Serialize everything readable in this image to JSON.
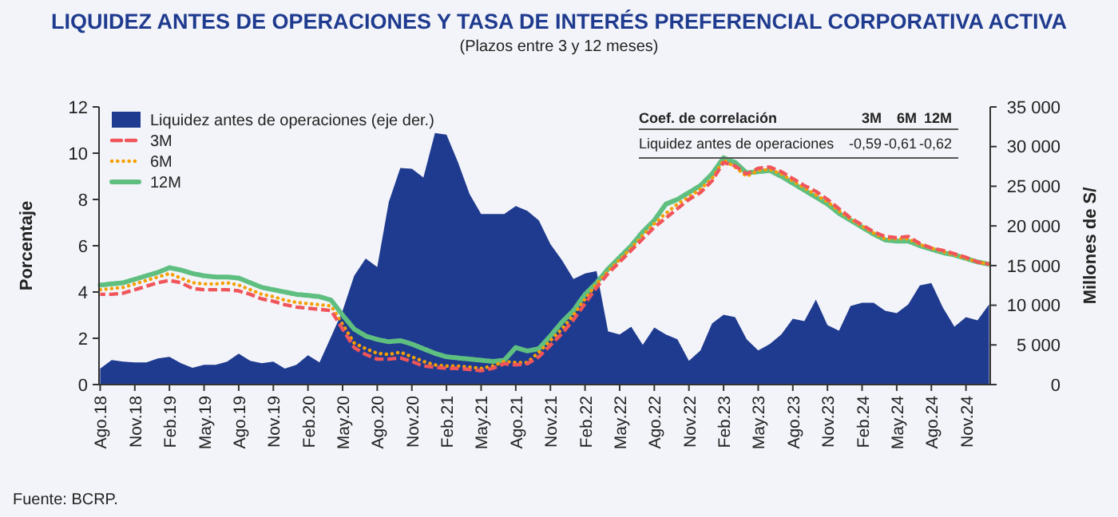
{
  "chart_data": {
    "type": "line",
    "title": "LIQUIDEZ ANTES DE OPERACIONES Y TASA DE INTERÉS PREFERENCIAL CORPORATIVA ACTIVA",
    "subtitle": "(Plazos entre 3 y 12 meses)",
    "ylabel": "Porcentaje",
    "y2label": "Millones de S/",
    "categories": [
      "Ago.18",
      null,
      null,
      "Nov.18",
      null,
      null,
      "Feb.19",
      null,
      null,
      "May.19",
      null,
      null,
      "Ago.19",
      null,
      null,
      "Nov.19",
      null,
      null,
      "Feb.20",
      null,
      null,
      "May.20",
      null,
      null,
      "Ago.20",
      null,
      null,
      "Nov.20",
      null,
      null,
      "Feb.21",
      null,
      null,
      "May.21",
      null,
      null,
      "Ago.21",
      null,
      null,
      "Nov.21",
      null,
      null,
      "Feb.22",
      null,
      null,
      "May.22",
      null,
      null,
      "Ago.22",
      null,
      null,
      "Nov.22",
      null,
      null,
      "Feb.23",
      null,
      null,
      "May.23",
      null,
      null,
      "Ago.23",
      null,
      null,
      "Nov.23",
      null,
      null,
      "Feb.24",
      null,
      null,
      "May.24",
      null,
      null,
      "Ago.24",
      null,
      null,
      "Nov.24",
      null,
      null
    ],
    "series": [
      {
        "name": "Liquidez antes de operaciones (eje der.)",
        "type": "area",
        "axis": "y2",
        "color": "#1f3b8f",
        "values": [
          2000,
          3100,
          2900,
          2800,
          2800,
          3300,
          3500,
          2700,
          2100,
          2500,
          2500,
          2900,
          3900,
          3000,
          2700,
          2900,
          2000,
          2500,
          3700,
          2800,
          6000,
          9300,
          13700,
          15900,
          14800,
          23000,
          27300,
          27200,
          26100,
          31700,
          31500,
          28000,
          24000,
          21500,
          21500,
          21500,
          22500,
          21900,
          20700,
          17700,
          15700,
          13300,
          14000,
          14300,
          6700,
          6300,
          7300,
          5000,
          7200,
          6300,
          5700,
          3000,
          4300,
          7700,
          8800,
          8500,
          5700,
          4300,
          5100,
          6300,
          8300,
          8000,
          10700,
          7500,
          6800,
          9900,
          10300,
          10300,
          9300,
          9000,
          10100,
          12500,
          12800,
          9700,
          7300,
          8500,
          8100,
          10100
        ]
      },
      {
        "name": "3M",
        "color": "#f0555a",
        "line_style": "dashed",
        "values": [
          3.9,
          3.9,
          3.95,
          4.1,
          4.25,
          4.4,
          4.5,
          4.4,
          4.15,
          4.1,
          4.1,
          4.1,
          4.05,
          3.9,
          3.7,
          3.6,
          3.45,
          3.35,
          3.3,
          3.25,
          3.2,
          2.4,
          1.6,
          1.3,
          1.1,
          1.1,
          1.15,
          1.0,
          0.8,
          0.75,
          0.7,
          0.7,
          0.65,
          0.6,
          0.7,
          0.9,
          0.85,
          0.9,
          1.2,
          1.7,
          2.2,
          2.8,
          3.5,
          4.2,
          4.8,
          5.3,
          5.8,
          6.3,
          6.8,
          7.2,
          7.6,
          8.0,
          8.3,
          8.8,
          9.6,
          9.45,
          9.1,
          9.35,
          9.4,
          9.2,
          8.9,
          8.6,
          8.35,
          8.0,
          7.6,
          7.2,
          6.9,
          6.6,
          6.4,
          6.35,
          6.4,
          6.1,
          5.9,
          5.8,
          5.65,
          5.5,
          5.3,
          5.2
        ]
      },
      {
        "name": "6M",
        "color": "#f5a000",
        "line_style": "dotted",
        "values": [
          4.1,
          4.15,
          4.2,
          4.35,
          4.5,
          4.65,
          4.8,
          4.6,
          4.4,
          4.35,
          4.35,
          4.4,
          4.3,
          4.1,
          3.9,
          3.8,
          3.65,
          3.55,
          3.5,
          3.45,
          3.4,
          2.6,
          1.8,
          1.55,
          1.35,
          1.3,
          1.4,
          1.2,
          1.0,
          0.85,
          0.8,
          0.8,
          0.75,
          0.7,
          0.8,
          1.0,
          0.95,
          0.95,
          1.4,
          1.9,
          2.4,
          3.0,
          3.7,
          4.35,
          4.9,
          5.4,
          5.9,
          6.45,
          6.95,
          7.4,
          7.8,
          8.1,
          8.45,
          8.9,
          9.7,
          9.4,
          9.0,
          9.25,
          9.3,
          9.1,
          8.8,
          8.5,
          8.2,
          7.9,
          7.5,
          7.15,
          6.85,
          6.55,
          6.3,
          6.3,
          6.3,
          6.05,
          5.9,
          5.75,
          5.6,
          5.45,
          5.3,
          5.2
        ]
      },
      {
        "name": "12M",
        "color": "#5fbf80",
        "line_style": "dotted",
        "values": [
          4.3,
          4.35,
          4.4,
          4.55,
          4.7,
          4.85,
          5.05,
          4.95,
          4.8,
          4.7,
          4.65,
          4.65,
          4.6,
          4.4,
          4.2,
          4.1,
          4.0,
          3.9,
          3.85,
          3.8,
          3.65,
          3.0,
          2.4,
          2.1,
          1.95,
          1.85,
          1.9,
          1.75,
          1.55,
          1.35,
          1.2,
          1.15,
          1.1,
          1.05,
          1.0,
          1.05,
          1.6,
          1.45,
          1.55,
          2.1,
          2.7,
          3.2,
          3.9,
          4.4,
          5.0,
          5.5,
          6.0,
          6.6,
          7.1,
          7.8,
          8.0,
          8.3,
          8.6,
          9.1,
          9.8,
          9.6,
          9.15,
          9.2,
          9.25,
          9.0,
          8.7,
          8.4,
          8.1,
          7.8,
          7.4,
          7.1,
          6.8,
          6.5,
          6.25,
          6.2,
          6.2,
          6.0,
          5.85,
          5.7,
          5.6,
          5.45,
          5.3,
          5.2
        ]
      }
    ],
    "ylim": [
      0,
      12
    ],
    "yticks": [
      0,
      2,
      4,
      6,
      8,
      10,
      12
    ],
    "y2lim": [
      0,
      35000
    ],
    "y2ticks": [
      0,
      {
        "value": 5000,
        "label": "5 000"
      },
      {
        "value": 10000,
        "label": "10 000"
      },
      {
        "value": 15000,
        "label": "15 000"
      },
      {
        "value": 20000,
        "label": "20 000"
      },
      {
        "value": 25000,
        "label": "25 000"
      },
      {
        "value": 30000,
        "label": "30 000"
      },
      {
        "value": 35000,
        "label": "35 000"
      }
    ],
    "legend": "top left",
    "grid": false,
    "marker": "none",
    "annotations": [
      "Coef. de correlación",
      "3M",
      "6M",
      "12M",
      "Liquidez antes de operaciones",
      "-0,59",
      "-0,61",
      "-0,62",
      "Fuente: BCRP."
    ]
  }
}
